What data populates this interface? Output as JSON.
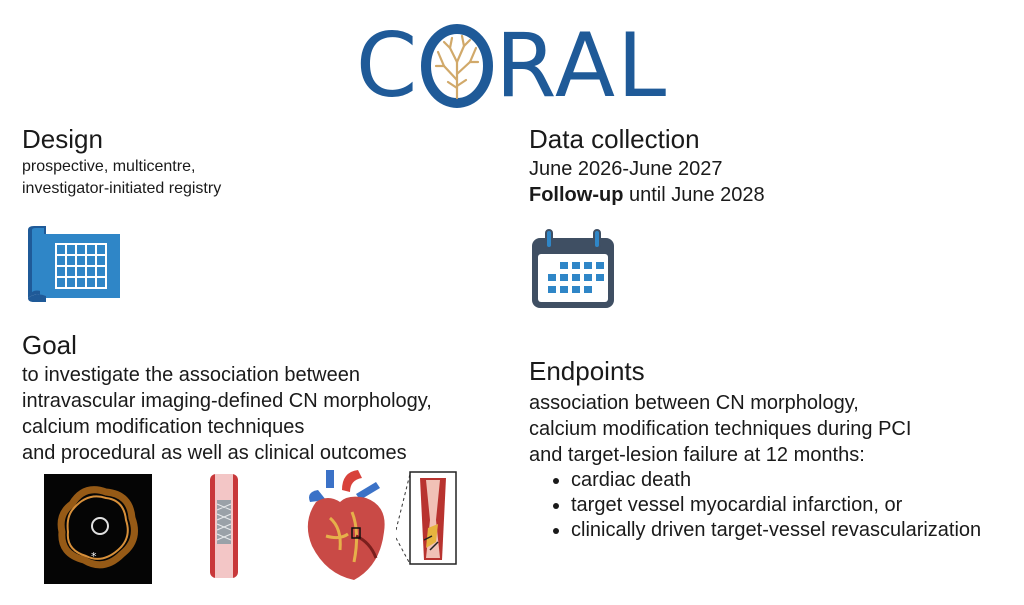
{
  "logo": {
    "left": "C",
    "right": "RAL",
    "icon": "coral-o-icon",
    "colors": {
      "text": "#1f5a98",
      "coral": "#d1a96a"
    }
  },
  "design": {
    "heading": "Design",
    "text": "prospective, multicentre,\ninvestigator-initiated registry",
    "icon": "spreadsheet-icon"
  },
  "goal": {
    "heading": "Goal",
    "lines": [
      "to investigate the association between",
      "intravascular imaging-defined CN morphology,",
      "calcium modification techniques",
      "and procedural as well as clinical outcomes"
    ]
  },
  "data_collection": {
    "heading": "Data collection",
    "period": "June 2026-June 2027",
    "followup_label": "Follow-up",
    "followup_text": " until June 2028",
    "icon": "calendar-icon"
  },
  "endpoints": {
    "heading": "Endpoints",
    "lines": [
      "association between CN morphology,",
      "calcium modification techniques during PCI",
      "and target-lesion failure at 12 months:"
    ],
    "bullets": [
      "cardiac death",
      "target vessel myocardial infarction, or",
      "clinically driven target-vessel revascularization"
    ]
  },
  "illustrations": [
    "intravascular-image-icon",
    "stent-icon",
    "heart-icon",
    "lesion-zoom-icon"
  ],
  "colors": {
    "accent_blue": "#2f86c7",
    "dark_blue": "#1f5a98",
    "calendar_gray": "#3f4f63",
    "artery_red": "#b8332f"
  }
}
